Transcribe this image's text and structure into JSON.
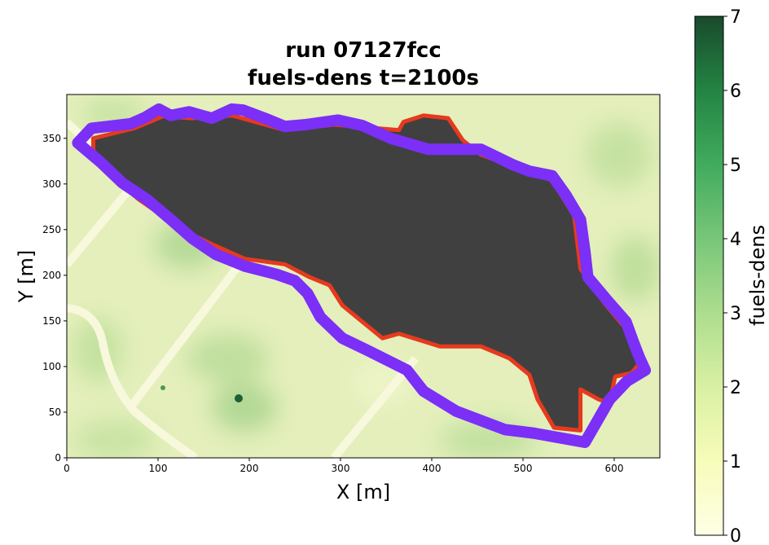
{
  "chart_data": {
    "type": "heatmap",
    "title": [
      "run 07127fcc",
      "fuels-dens t=2100s"
    ],
    "xlabel": "X [m]",
    "ylabel": "Y [m]",
    "xlim": [
      0,
      650
    ],
    "ylim": [
      0,
      398
    ],
    "xticks": [
      0,
      100,
      200,
      300,
      400,
      500,
      600
    ],
    "yticks": [
      0,
      50,
      100,
      150,
      200,
      250,
      300,
      350
    ],
    "colorbar": {
      "label": "fuels-dens",
      "lim": [
        0,
        7
      ],
      "ticks": [
        0,
        1,
        2,
        3,
        4,
        5,
        6,
        7
      ],
      "cmap": [
        "#ffffe5",
        "#f7fcb9",
        "#d9f0a3",
        "#addd8e",
        "#78c679",
        "#41ab5d",
        "#238443",
        "#1a4a2c"
      ]
    },
    "series": [
      {
        "fill": "#404040",
        "edgecolor": "#e63a1e",
        "x": [
          29,
          74,
          105,
          137,
          181,
          239,
          293,
          364,
          369,
          391,
          418,
          434,
          454,
          498,
          532,
          556,
          563,
          588,
          614,
          628,
          619,
          601,
          595,
          583,
          563,
          563,
          534,
          516,
          507,
          485,
          454,
          409,
          364,
          346,
          302,
          288,
          266,
          239,
          195,
          159,
          132,
          105,
          79,
          52,
          29
        ],
        "y": [
          350,
          361,
          374,
          372,
          375,
          359,
          365,
          359,
          368,
          375,
          372,
          348,
          332,
          316,
          304,
          265,
          207,
          171,
          140,
          104,
          93,
          89,
          60,
          64,
          75,
          30,
          33,
          64,
          91,
          109,
          122,
          122,
          136,
          131,
          167,
          189,
          198,
          212,
          218,
          234,
          247,
          265,
          283,
          305,
          337
        ]
      },
      {
        "edgecolor": "#7b2ff7",
        "x": [
          12,
          27,
          70,
          86,
          101,
          114,
          134,
          159,
          181,
          193,
          217,
          239,
          262,
          297,
          324,
          355,
          396,
          454,
          489,
          507,
          532,
          547,
          563,
          568,
          571,
          592,
          613,
          621,
          628,
          634,
          614,
          595,
          568,
          512,
          480,
          427,
          391,
          373,
          329,
          302,
          278,
          264,
          250,
          230,
          195,
          163,
          138,
          114,
          88,
          61,
          38,
          12
        ],
        "y": [
          345,
          361,
          366,
          373,
          382,
          375,
          379,
          372,
          382,
          381,
          372,
          363,
          365,
          370,
          364,
          350,
          338,
          338,
          321,
          314,
          309,
          288,
          261,
          225,
          198,
          173,
          149,
          127,
          109,
          96,
          84,
          64,
          17,
          27,
          31,
          51,
          73,
          96,
          118,
          131,
          154,
          180,
          194,
          201,
          210,
          223,
          240,
          261,
          283,
          301,
          323,
          345
        ]
      }
    ]
  }
}
